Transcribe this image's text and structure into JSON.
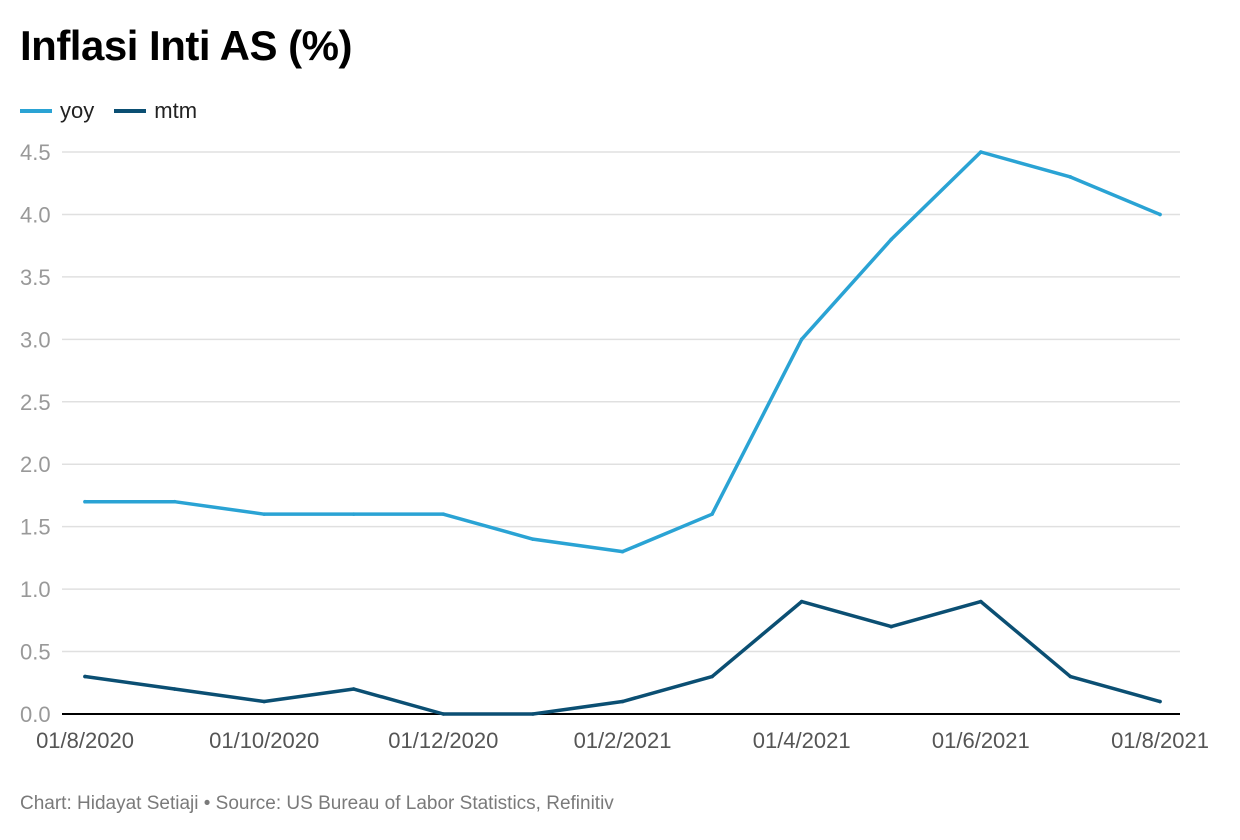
{
  "title": "Inflasi Inti AS (%)",
  "footer": "Chart: Hidayat Setiaji • Source: US Bureau of Labor Statistics, Refinitiv",
  "colors": {
    "yoy": "#2aa3d4",
    "mtm": "#0b4f73",
    "grid": "#e0e0e0",
    "axis": "#000000",
    "tick_text": "#999999"
  },
  "chart_data": {
    "type": "line",
    "title": "Inflasi Inti AS (%)",
    "xlabel": "",
    "ylabel": "",
    "x": [
      "01/8/2020",
      "01/9/2020",
      "01/10/2020",
      "01/11/2020",
      "01/12/2020",
      "01/1/2021",
      "01/2/2021",
      "01/3/2021",
      "01/4/2021",
      "01/5/2021",
      "01/6/2021",
      "01/7/2021",
      "01/8/2021"
    ],
    "x_tick_labels": [
      "01/8/2020",
      "01/10/2020",
      "01/12/2020",
      "01/2/2021",
      "01/4/2021",
      "01/6/2021",
      "01/8/2021"
    ],
    "ylim": [
      0,
      4.5
    ],
    "y_ticks": [
      "0.0",
      "0.5",
      "1.0",
      "1.5",
      "2.0",
      "2.5",
      "3.0",
      "3.5",
      "4.0",
      "4.5"
    ],
    "grid": true,
    "legend_position": "top-left",
    "series": [
      {
        "name": "yoy",
        "color": "#2aa3d4",
        "values": [
          1.7,
          1.7,
          1.6,
          1.6,
          1.6,
          1.4,
          1.3,
          1.6,
          3.0,
          3.8,
          4.5,
          4.3,
          4.0
        ]
      },
      {
        "name": "mtm",
        "color": "#0b4f73",
        "values": [
          0.3,
          0.2,
          0.1,
          0.2,
          0.0,
          0.0,
          0.1,
          0.3,
          0.9,
          0.7,
          0.9,
          0.3,
          0.1
        ]
      }
    ]
  }
}
